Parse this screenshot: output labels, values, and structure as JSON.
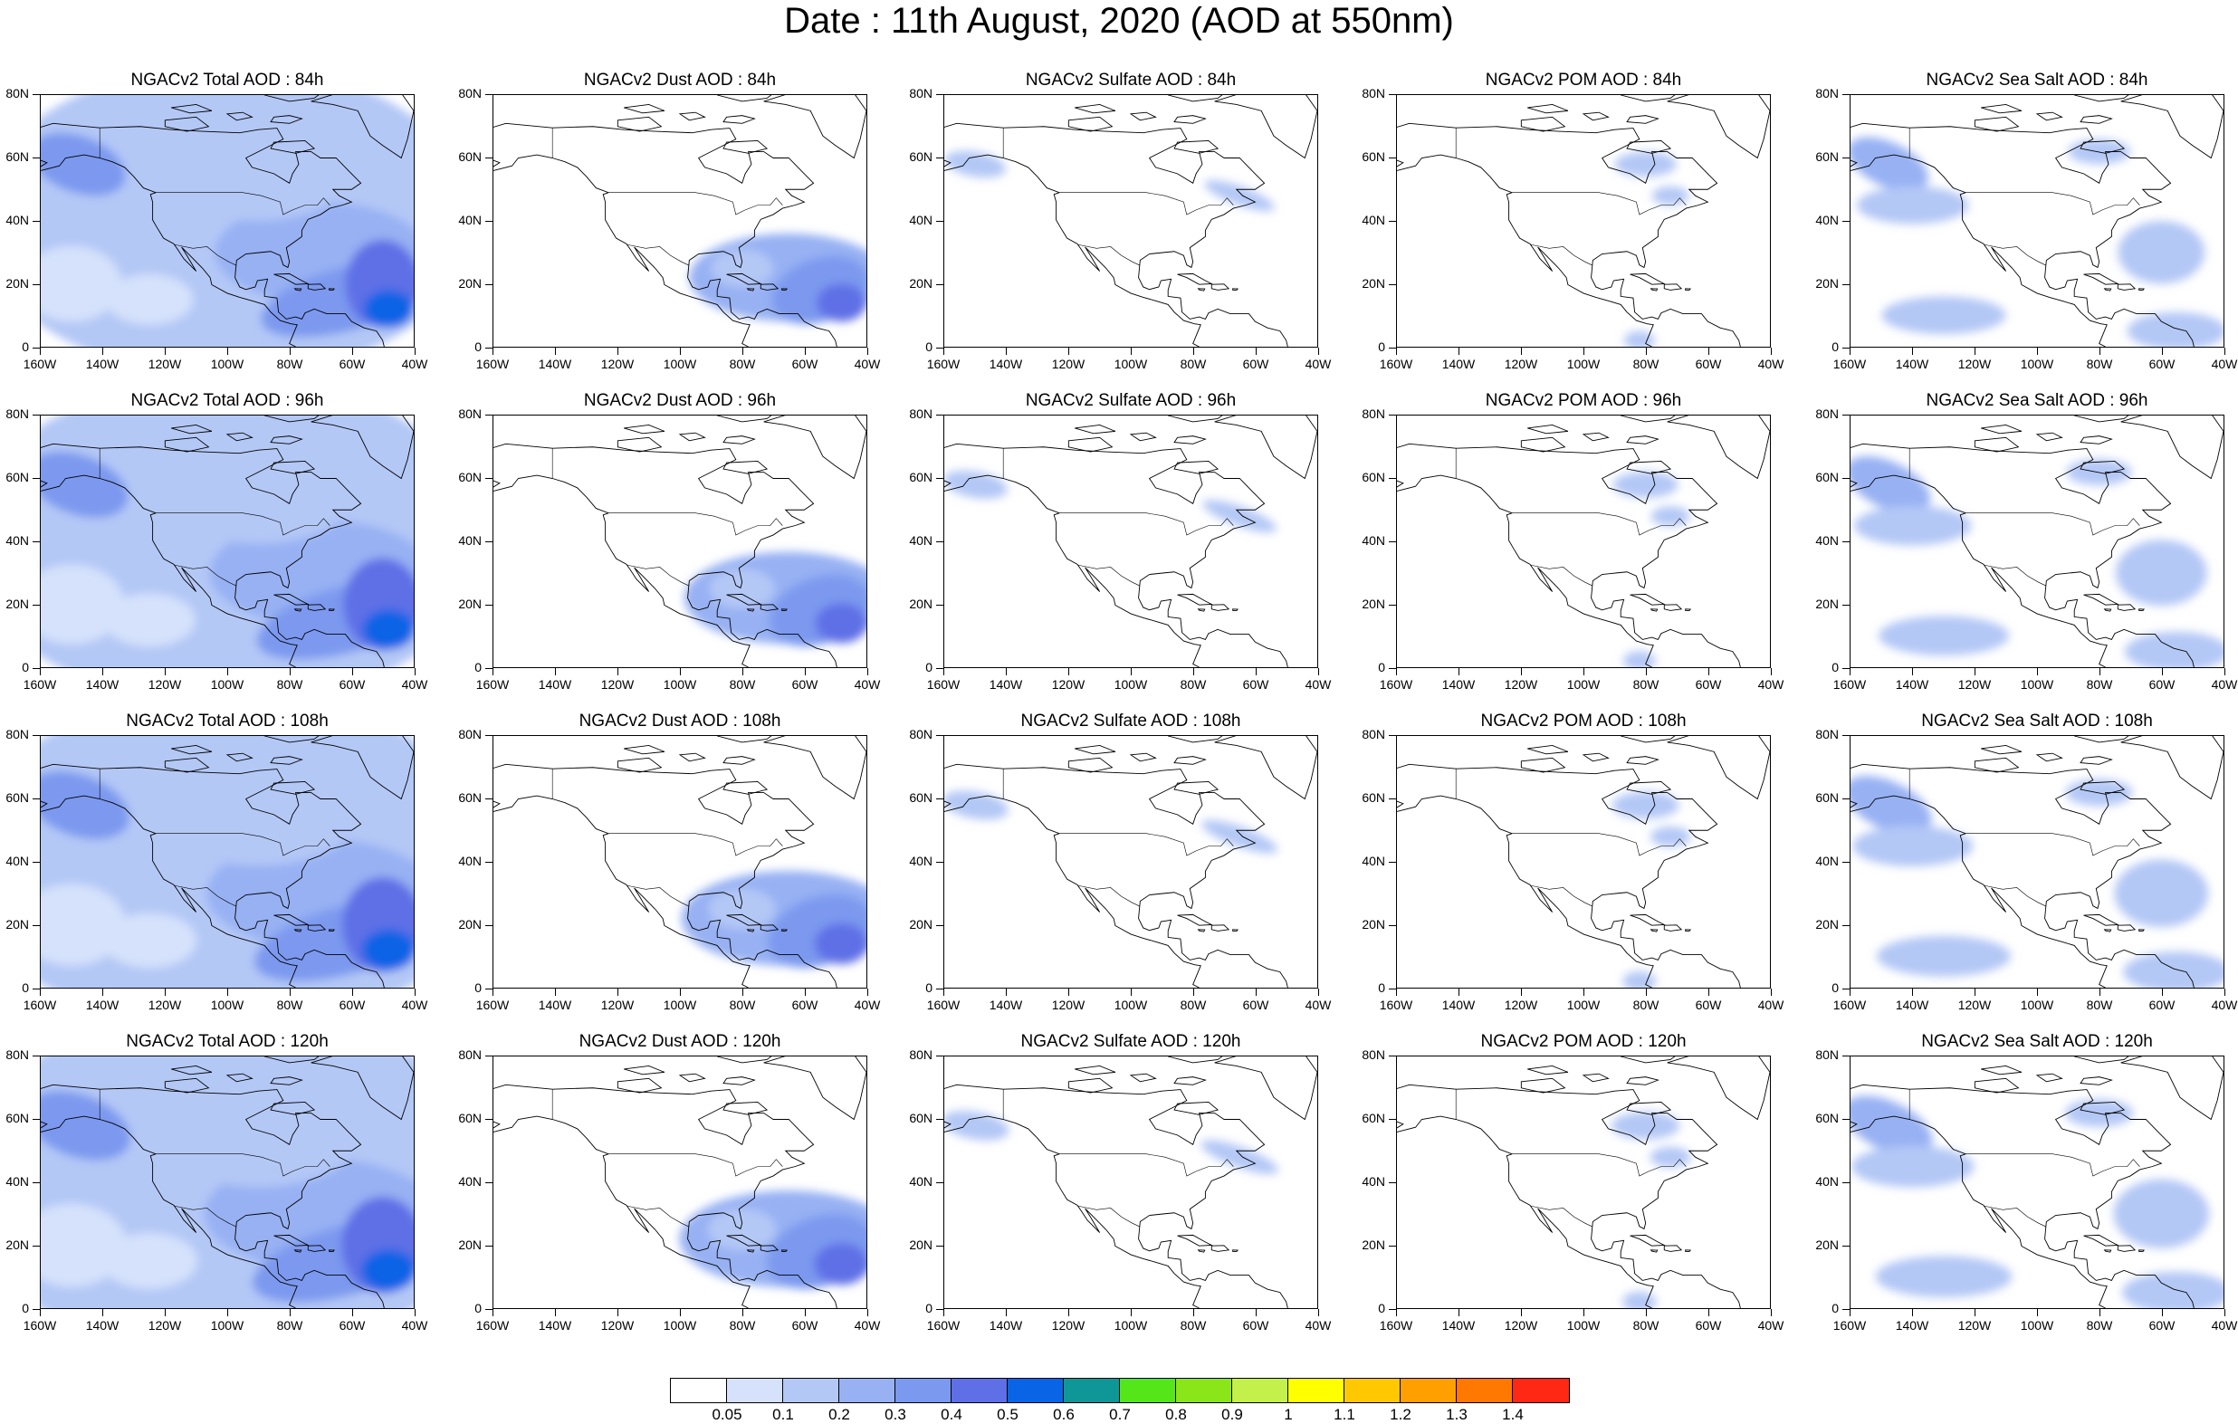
{
  "title": "Date : 11th August, 2020 (AOD at 550nm)",
  "y_ticks": [
    "80N",
    "60N",
    "40N",
    "20N",
    "0"
  ],
  "x_ticks": [
    "160W",
    "140W",
    "120W",
    "100W",
    "80W",
    "60W",
    "40W"
  ],
  "panels": [
    {
      "title": "NGACv2 Total AOD : 84h",
      "species": "total"
    },
    {
      "title": "NGACv2 Dust AOD : 84h",
      "species": "dust"
    },
    {
      "title": "NGACv2 Sulfate AOD : 84h",
      "species": "sulfate"
    },
    {
      "title": "NGACv2 POM AOD : 84h",
      "species": "pom"
    },
    {
      "title": "NGACv2 Sea Salt AOD : 84h",
      "species": "seasalt"
    },
    {
      "title": "NGACv2 Total AOD : 96h",
      "species": "total"
    },
    {
      "title": "NGACv2 Dust AOD : 96h",
      "species": "dust"
    },
    {
      "title": "NGACv2 Sulfate AOD : 96h",
      "species": "sulfate"
    },
    {
      "title": "NGACv2 POM AOD : 96h",
      "species": "pom"
    },
    {
      "title": "NGACv2 Sea Salt AOD : 96h",
      "species": "seasalt"
    },
    {
      "title": "NGACv2 Total AOD : 108h",
      "species": "total"
    },
    {
      "title": "NGACv2 Dust AOD : 108h",
      "species": "dust"
    },
    {
      "title": "NGACv2 Sulfate AOD : 108h",
      "species": "sulfate"
    },
    {
      "title": "NGACv2 POM AOD : 108h",
      "species": "pom"
    },
    {
      "title": "NGACv2 Sea Salt AOD : 108h",
      "species": "seasalt"
    },
    {
      "title": "NGACv2 Total AOD : 120h",
      "species": "total"
    },
    {
      "title": "NGACv2 Dust AOD : 120h",
      "species": "dust"
    },
    {
      "title": "NGACv2 Sulfate AOD : 120h",
      "species": "sulfate"
    },
    {
      "title": "NGACv2 POM AOD : 120h",
      "species": "pom"
    },
    {
      "title": "NGACv2 Sea Salt  AOD : 120h",
      "species": "seasalt"
    }
  ],
  "colorbar": {
    "labels": [
      "0.05",
      "0.1",
      "0.2",
      "0.3",
      "0.4",
      "0.5",
      "0.6",
      "0.7",
      "0.8",
      "0.9",
      "1",
      "1.1",
      "1.2",
      "1.3",
      "1.4"
    ],
    "colors": [
      "#ffffff",
      "#d6e2fb",
      "#b4c8f6",
      "#97b1f3",
      "#7b99ef",
      "#5f6fe6",
      "#0a64e6",
      "#0f9696",
      "#55e619",
      "#8ae619",
      "#c3f04b",
      "#ffff00",
      "#ffc800",
      "#ffa000",
      "#ff7800",
      "#ff2814"
    ]
  },
  "chart_data": {
    "type": "heatmap",
    "title": "Date : 11th August, 2020 (AOD at 550nm)",
    "rows_forecast_hours": [
      "84h",
      "96h",
      "108h",
      "120h"
    ],
    "columns_species": [
      "Total AOD",
      "Dust AOD",
      "Sulfate AOD",
      "POM AOD",
      "Sea Salt AOD"
    ],
    "lon_range": [
      -160,
      -40
    ],
    "lat_range": [
      0,
      80
    ],
    "colorbar_levels": [
      0.05,
      0.1,
      0.2,
      0.3,
      0.4,
      0.5,
      0.6,
      0.7,
      0.8,
      0.9,
      1,
      1.1,
      1.2,
      1.3,
      1.4
    ]
  }
}
